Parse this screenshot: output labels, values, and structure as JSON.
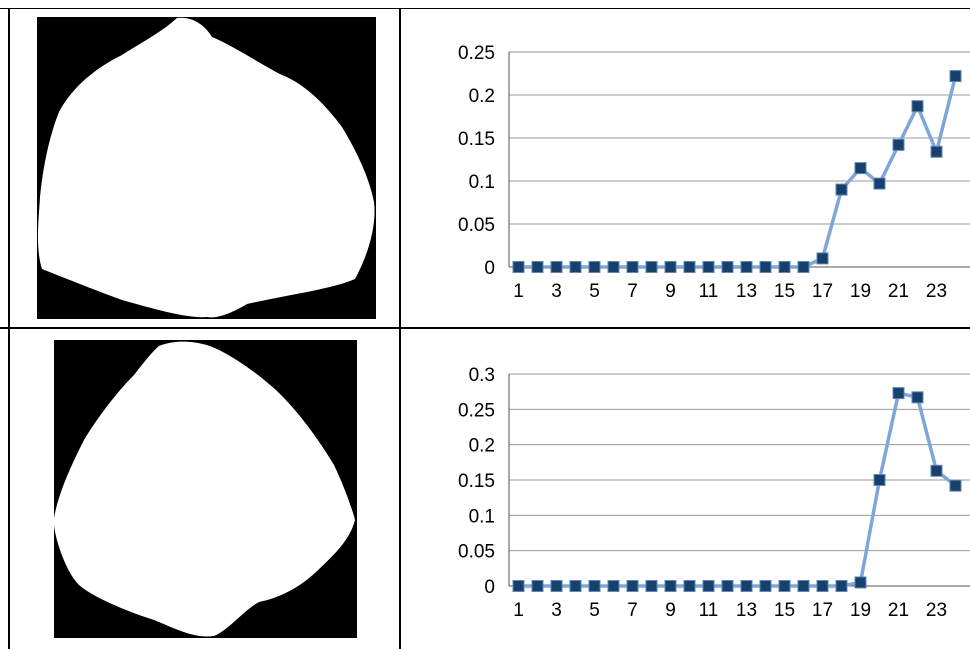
{
  "rows": [
    {
      "chart_data": {
        "type": "line",
        "x": [
          1,
          2,
          3,
          4,
          5,
          6,
          7,
          8,
          9,
          10,
          11,
          12,
          13,
          14,
          15,
          16,
          17,
          18,
          19,
          20,
          21,
          22,
          23,
          24
        ],
        "x_tick_labels": [
          "1",
          "3",
          "5",
          "7",
          "9",
          "11",
          "13",
          "15",
          "17",
          "19",
          "21",
          "23"
        ],
        "values": [
          0,
          0,
          0,
          0,
          0,
          0,
          0,
          0,
          0,
          0,
          0,
          0,
          0,
          0,
          0,
          0,
          0.01,
          0.09,
          0.115,
          0.097,
          0.142,
          0.187,
          0.134,
          0.222
        ],
        "y_ticks": [
          "0",
          "0.05",
          "0.1",
          "0.15",
          "0.2",
          "0.25"
        ],
        "ylim": [
          0,
          0.25
        ],
        "grid": true,
        "line_color": "#7ea7d8",
        "marker_color": "#17406d"
      }
    },
    {
      "chart_data": {
        "type": "line",
        "x": [
          1,
          2,
          3,
          4,
          5,
          6,
          7,
          8,
          9,
          10,
          11,
          12,
          13,
          14,
          15,
          16,
          17,
          18,
          19,
          20,
          21,
          22,
          23,
          24
        ],
        "x_tick_labels": [
          "1",
          "3",
          "5",
          "7",
          "9",
          "11",
          "13",
          "15",
          "17",
          "19",
          "21",
          "23"
        ],
        "values": [
          0,
          0,
          0,
          0,
          0,
          0,
          0,
          0,
          0,
          0,
          0,
          0,
          0,
          0,
          0,
          0,
          0,
          0,
          0.005,
          0.15,
          0.273,
          0.267,
          0.163,
          0.142
        ],
        "y_ticks": [
          "0",
          "0.05",
          "0.1",
          "0.15",
          "0.2",
          "0.25",
          "0.3"
        ],
        "ylim": [
          0,
          0.3
        ],
        "grid": true,
        "line_color": "#7ea7d8",
        "marker_color": "#17406d"
      }
    }
  ]
}
